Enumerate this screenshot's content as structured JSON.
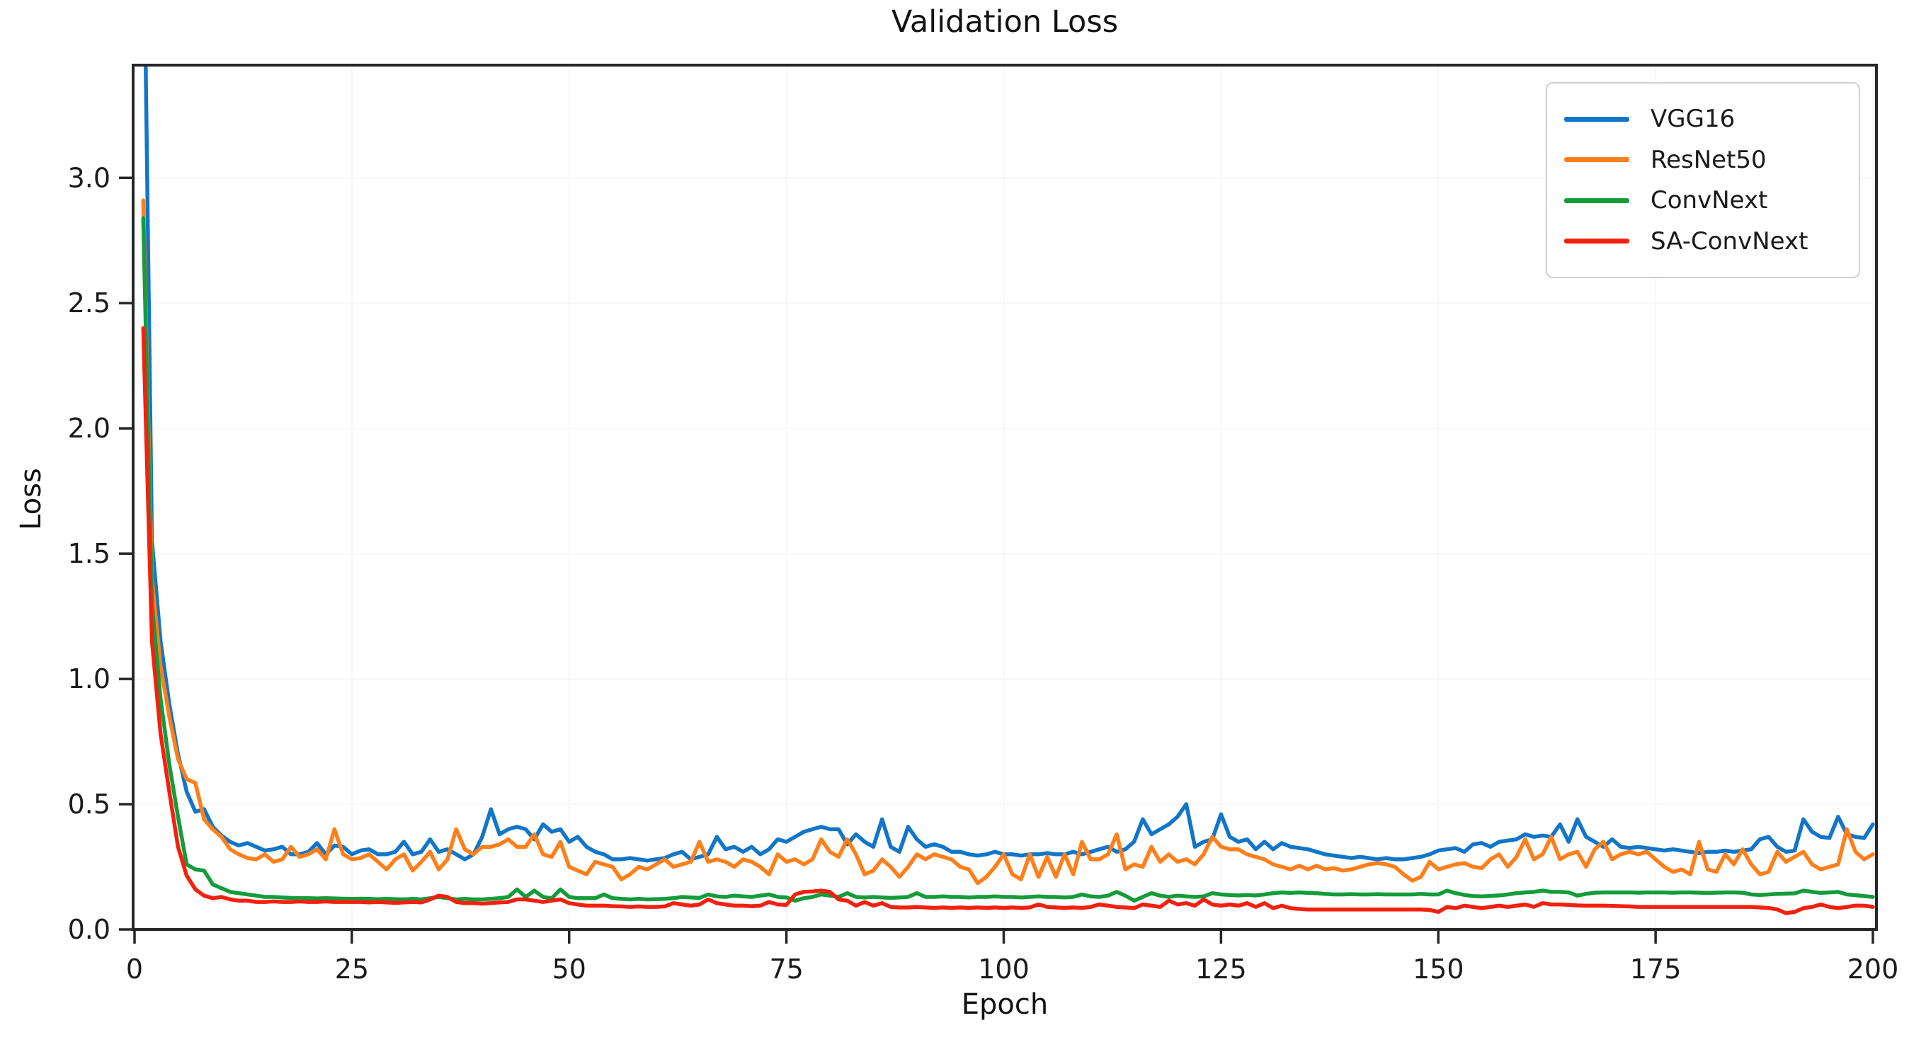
{
  "chart_data": {
    "type": "line",
    "title": "Validation Loss",
    "xlabel": "Epoch",
    "ylabel": "Loss",
    "xlim": [
      0,
      200
    ],
    "ylim": [
      0,
      3.45
    ],
    "grid": true,
    "legend_position": "upper right",
    "x_ticks": [
      0,
      25,
      50,
      75,
      100,
      125,
      150,
      175,
      200
    ],
    "x_tick_labels": [
      "0",
      "25",
      "50",
      "75",
      "100",
      "125",
      "150",
      "175",
      "200"
    ],
    "y_ticks": [
      0.0,
      0.5,
      1.0,
      1.5,
      2.0,
      2.5,
      3.0
    ],
    "y_tick_labels": [
      "0.0",
      "0.5",
      "1.0",
      "1.5",
      "2.0",
      "2.5",
      "3.0"
    ],
    "epochs": {
      "start": 1,
      "end": 200,
      "step": 1
    },
    "axis_color": "#262626",
    "series": [
      {
        "name": "VGG16",
        "color": "#1276c8",
        "values": [
          4.2,
          1.55,
          1.15,
          0.9,
          0.7,
          0.55,
          0.47,
          0.48,
          0.41,
          0.375,
          0.35,
          0.335,
          0.345,
          0.33,
          0.315,
          0.32,
          0.33,
          0.3,
          0.3,
          0.31,
          0.345,
          0.3,
          0.335,
          0.33,
          0.3,
          0.315,
          0.32,
          0.3,
          0.3,
          0.31,
          0.35,
          0.3,
          0.31,
          0.36,
          0.31,
          0.32,
          0.3,
          0.28,
          0.3,
          0.37,
          0.48,
          0.38,
          0.4,
          0.41,
          0.4,
          0.36,
          0.42,
          0.39,
          0.4,
          0.35,
          0.37,
          0.33,
          0.31,
          0.3,
          0.28,
          0.28,
          0.285,
          0.28,
          0.275,
          0.28,
          0.285,
          0.3,
          0.31,
          0.28,
          0.29,
          0.3,
          0.37,
          0.32,
          0.33,
          0.31,
          0.33,
          0.3,
          0.32,
          0.36,
          0.35,
          0.37,
          0.39,
          0.4,
          0.41,
          0.4,
          0.4,
          0.34,
          0.38,
          0.35,
          0.33,
          0.44,
          0.33,
          0.31,
          0.41,
          0.36,
          0.33,
          0.34,
          0.33,
          0.31,
          0.31,
          0.3,
          0.295,
          0.3,
          0.31,
          0.3,
          0.3,
          0.295,
          0.3,
          0.3,
          0.305,
          0.3,
          0.3,
          0.31,
          0.3,
          0.31,
          0.32,
          0.33,
          0.31,
          0.32,
          0.35,
          0.44,
          0.38,
          0.4,
          0.42,
          0.45,
          0.5,
          0.33,
          0.35,
          0.36,
          0.46,
          0.37,
          0.35,
          0.36,
          0.32,
          0.35,
          0.32,
          0.345,
          0.33,
          0.325,
          0.32,
          0.31,
          0.3,
          0.295,
          0.29,
          0.285,
          0.29,
          0.285,
          0.28,
          0.285,
          0.28,
          0.28,
          0.285,
          0.29,
          0.3,
          0.315,
          0.32,
          0.325,
          0.31,
          0.34,
          0.345,
          0.33,
          0.35,
          0.355,
          0.36,
          0.38,
          0.37,
          0.375,
          0.37,
          0.42,
          0.35,
          0.44,
          0.37,
          0.35,
          0.33,
          0.36,
          0.33,
          0.325,
          0.33,
          0.325,
          0.32,
          0.315,
          0.32,
          0.315,
          0.31,
          0.305,
          0.31,
          0.31,
          0.315,
          0.31,
          0.315,
          0.32,
          0.36,
          0.37,
          0.33,
          0.31,
          0.315,
          0.44,
          0.39,
          0.37,
          0.365,
          0.45,
          0.38,
          0.37,
          0.365,
          0.42
        ]
      },
      {
        "name": "ResNet50",
        "color": "#ff7f1a",
        "values": [
          2.91,
          1.4,
          1.05,
          0.85,
          0.68,
          0.6,
          0.585,
          0.44,
          0.4,
          0.37,
          0.32,
          0.3,
          0.285,
          0.28,
          0.3,
          0.27,
          0.28,
          0.33,
          0.29,
          0.3,
          0.32,
          0.28,
          0.4,
          0.3,
          0.28,
          0.285,
          0.3,
          0.27,
          0.24,
          0.28,
          0.3,
          0.235,
          0.27,
          0.31,
          0.24,
          0.28,
          0.4,
          0.32,
          0.3,
          0.33,
          0.33,
          0.34,
          0.36,
          0.33,
          0.33,
          0.38,
          0.3,
          0.29,
          0.35,
          0.25,
          0.235,
          0.22,
          0.27,
          0.26,
          0.25,
          0.2,
          0.22,
          0.25,
          0.24,
          0.26,
          0.28,
          0.25,
          0.26,
          0.27,
          0.35,
          0.27,
          0.28,
          0.27,
          0.25,
          0.28,
          0.27,
          0.25,
          0.22,
          0.3,
          0.27,
          0.28,
          0.26,
          0.28,
          0.36,
          0.31,
          0.29,
          0.36,
          0.3,
          0.22,
          0.235,
          0.28,
          0.25,
          0.21,
          0.25,
          0.3,
          0.28,
          0.3,
          0.29,
          0.28,
          0.25,
          0.24,
          0.185,
          0.21,
          0.25,
          0.3,
          0.22,
          0.2,
          0.3,
          0.21,
          0.29,
          0.21,
          0.3,
          0.22,
          0.35,
          0.28,
          0.28,
          0.3,
          0.38,
          0.24,
          0.26,
          0.25,
          0.33,
          0.27,
          0.3,
          0.27,
          0.28,
          0.26,
          0.3,
          0.37,
          0.33,
          0.32,
          0.32,
          0.3,
          0.29,
          0.28,
          0.26,
          0.25,
          0.24,
          0.255,
          0.24,
          0.255,
          0.24,
          0.245,
          0.235,
          0.24,
          0.25,
          0.26,
          0.265,
          0.26,
          0.25,
          0.22,
          0.195,
          0.21,
          0.27,
          0.24,
          0.25,
          0.26,
          0.265,
          0.25,
          0.245,
          0.28,
          0.3,
          0.25,
          0.29,
          0.36,
          0.28,
          0.3,
          0.37,
          0.28,
          0.3,
          0.31,
          0.25,
          0.32,
          0.35,
          0.28,
          0.3,
          0.31,
          0.3,
          0.31,
          0.28,
          0.25,
          0.23,
          0.24,
          0.22,
          0.35,
          0.24,
          0.23,
          0.3,
          0.26,
          0.32,
          0.26,
          0.22,
          0.23,
          0.31,
          0.27,
          0.29,
          0.31,
          0.26,
          0.24,
          0.25,
          0.26,
          0.4,
          0.31,
          0.28,
          0.3
        ]
      },
      {
        "name": "ConvNext",
        "color": "#149c3a",
        "values": [
          2.84,
          1.3,
          0.92,
          0.66,
          0.45,
          0.26,
          0.24,
          0.235,
          0.18,
          0.165,
          0.15,
          0.145,
          0.14,
          0.135,
          0.13,
          0.13,
          0.128,
          0.126,
          0.125,
          0.125,
          0.124,
          0.125,
          0.124,
          0.123,
          0.122,
          0.123,
          0.122,
          0.121,
          0.122,
          0.121,
          0.12,
          0.122,
          0.12,
          0.125,
          0.13,
          0.125,
          0.12,
          0.122,
          0.12,
          0.12,
          0.122,
          0.125,
          0.13,
          0.16,
          0.13,
          0.155,
          0.13,
          0.125,
          0.16,
          0.13,
          0.125,
          0.125,
          0.125,
          0.14,
          0.125,
          0.122,
          0.12,
          0.122,
          0.12,
          0.121,
          0.122,
          0.125,
          0.13,
          0.128,
          0.126,
          0.14,
          0.132,
          0.13,
          0.135,
          0.132,
          0.13,
          0.135,
          0.14,
          0.13,
          0.128,
          0.115,
          0.125,
          0.13,
          0.14,
          0.135,
          0.13,
          0.145,
          0.13,
          0.128,
          0.13,
          0.128,
          0.126,
          0.128,
          0.13,
          0.145,
          0.13,
          0.13,
          0.132,
          0.13,
          0.13,
          0.128,
          0.13,
          0.13,
          0.132,
          0.13,
          0.13,
          0.128,
          0.13,
          0.132,
          0.13,
          0.13,
          0.128,
          0.13,
          0.14,
          0.132,
          0.13,
          0.135,
          0.15,
          0.135,
          0.115,
          0.13,
          0.145,
          0.135,
          0.13,
          0.135,
          0.132,
          0.13,
          0.132,
          0.145,
          0.14,
          0.138,
          0.136,
          0.138,
          0.136,
          0.14,
          0.145,
          0.148,
          0.146,
          0.148,
          0.146,
          0.145,
          0.142,
          0.14,
          0.14,
          0.141,
          0.14,
          0.14,
          0.141,
          0.14,
          0.14,
          0.14,
          0.14,
          0.142,
          0.14,
          0.14,
          0.155,
          0.145,
          0.138,
          0.133,
          0.132,
          0.134,
          0.136,
          0.14,
          0.145,
          0.148,
          0.15,
          0.155,
          0.15,
          0.15,
          0.148,
          0.135,
          0.142,
          0.147,
          0.148,
          0.148,
          0.148,
          0.148,
          0.147,
          0.148,
          0.148,
          0.148,
          0.147,
          0.148,
          0.148,
          0.147,
          0.146,
          0.147,
          0.148,
          0.148,
          0.147,
          0.14,
          0.138,
          0.14,
          0.142,
          0.143,
          0.144,
          0.155,
          0.15,
          0.146,
          0.148,
          0.15,
          0.14,
          0.137,
          0.133,
          0.13
        ]
      },
      {
        "name": "SA-ConvNext",
        "color": "#f4200f",
        "values": [
          2.4,
          1.15,
          0.78,
          0.55,
          0.33,
          0.215,
          0.16,
          0.135,
          0.125,
          0.13,
          0.12,
          0.115,
          0.115,
          0.11,
          0.11,
          0.112,
          0.11,
          0.11,
          0.112,
          0.11,
          0.11,
          0.112,
          0.11,
          0.11,
          0.11,
          0.11,
          0.108,
          0.11,
          0.108,
          0.106,
          0.108,
          0.11,
          0.108,
          0.12,
          0.135,
          0.13,
          0.11,
          0.105,
          0.105,
          0.103,
          0.105,
          0.108,
          0.11,
          0.12,
          0.12,
          0.115,
          0.11,
          0.115,
          0.12,
          0.105,
          0.1,
          0.095,
          0.095,
          0.095,
          0.093,
          0.092,
          0.09,
          0.092,
          0.09,
          0.09,
          0.092,
          0.105,
          0.1,
          0.095,
          0.1,
          0.12,
          0.105,
          0.1,
          0.095,
          0.095,
          0.093,
          0.095,
          0.11,
          0.1,
          0.098,
          0.14,
          0.15,
          0.152,
          0.155,
          0.15,
          0.12,
          0.115,
          0.095,
          0.11,
          0.095,
          0.105,
          0.09,
          0.088,
          0.088,
          0.09,
          0.088,
          0.086,
          0.088,
          0.086,
          0.088,
          0.086,
          0.088,
          0.086,
          0.088,
          0.086,
          0.088,
          0.086,
          0.088,
          0.1,
          0.09,
          0.088,
          0.086,
          0.088,
          0.086,
          0.09,
          0.1,
          0.095,
          0.09,
          0.088,
          0.085,
          0.1,
          0.095,
          0.09,
          0.115,
          0.1,
          0.105,
          0.095,
          0.12,
          0.1,
          0.095,
          0.1,
          0.095,
          0.105,
          0.09,
          0.105,
          0.085,
          0.095,
          0.085,
          0.082,
          0.08,
          0.08,
          0.08,
          0.08,
          0.08,
          0.08,
          0.08,
          0.08,
          0.08,
          0.08,
          0.08,
          0.08,
          0.08,
          0.08,
          0.078,
          0.07,
          0.09,
          0.085,
          0.095,
          0.09,
          0.085,
          0.09,
          0.095,
          0.09,
          0.095,
          0.1,
          0.09,
          0.105,
          0.1,
          0.1,
          0.098,
          0.096,
          0.095,
          0.095,
          0.095,
          0.094,
          0.093,
          0.092,
          0.09,
          0.09,
          0.09,
          0.09,
          0.09,
          0.09,
          0.09,
          0.09,
          0.09,
          0.09,
          0.09,
          0.09,
          0.09,
          0.09,
          0.088,
          0.086,
          0.08,
          0.065,
          0.07,
          0.085,
          0.09,
          0.1,
          0.09,
          0.085,
          0.09,
          0.095,
          0.095,
          0.09
        ]
      }
    ]
  }
}
